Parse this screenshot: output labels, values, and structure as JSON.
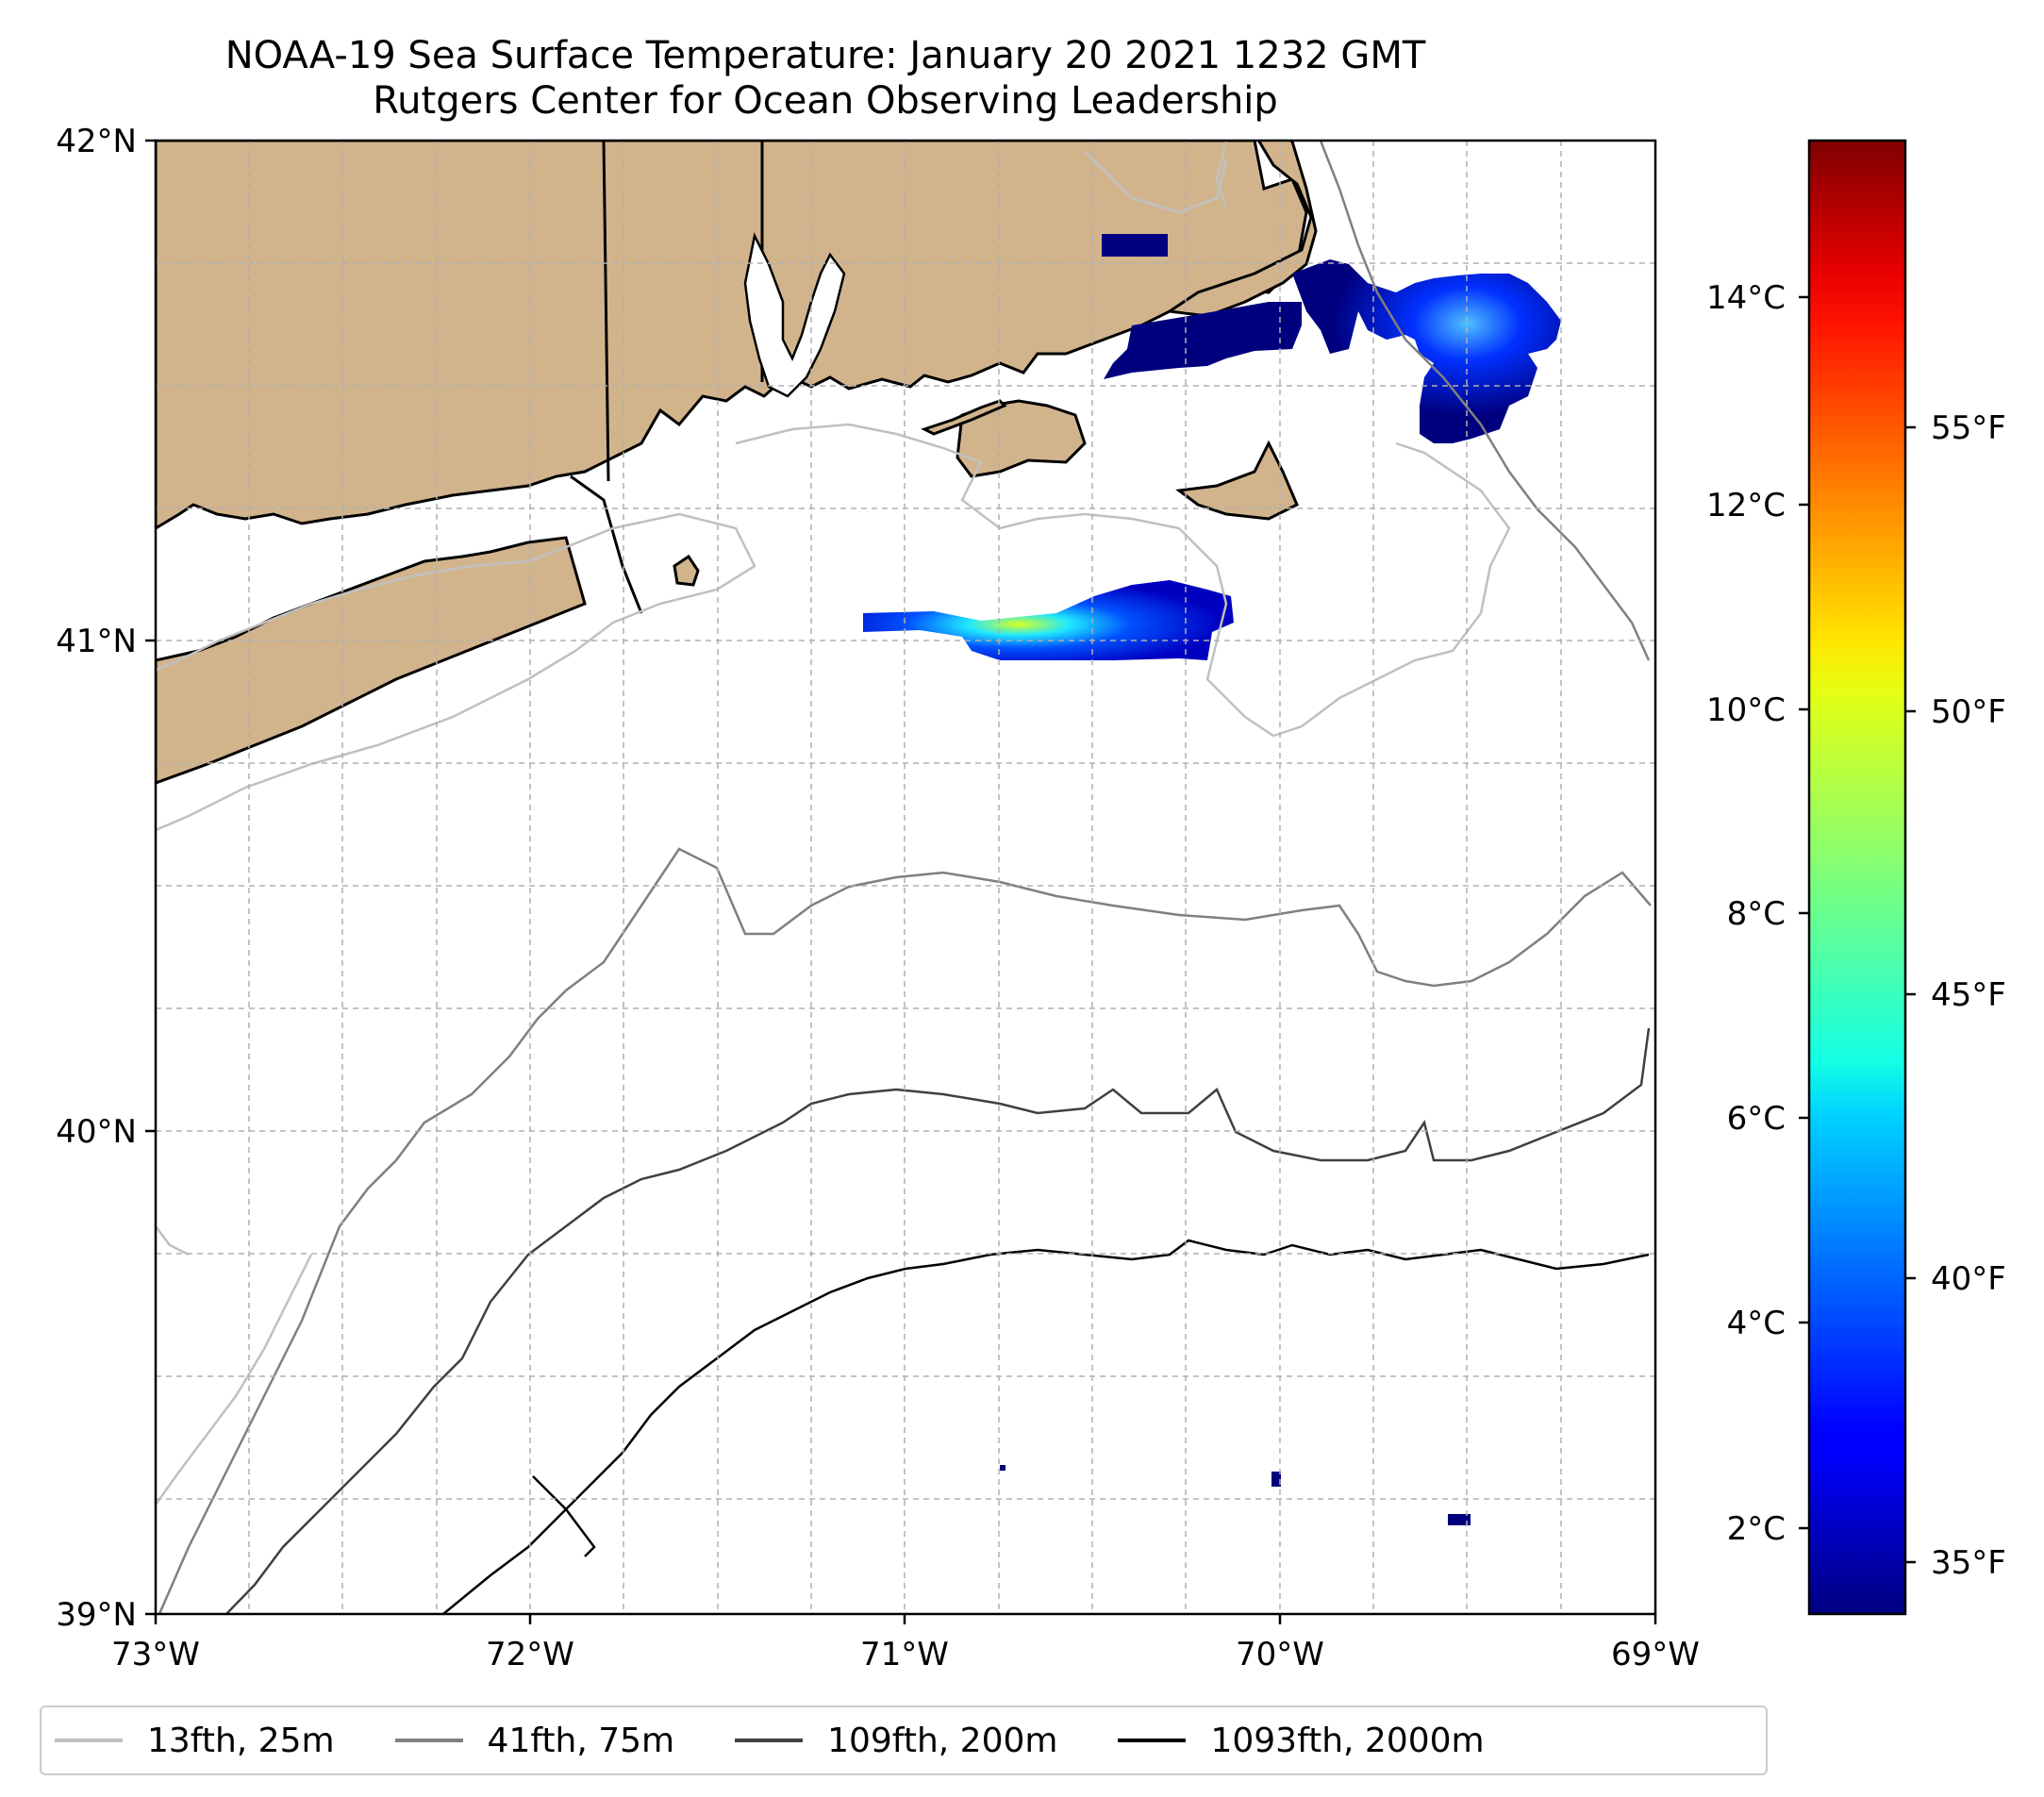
{
  "title": "NOAA-19 Sea Surface Temperature: January 20 2021 1232 GMT",
  "subtitle": "Rutgers Center for Ocean Observing Leadership",
  "axes": {
    "lat_labels": [
      "42°N",
      "41°N",
      "40°N",
      "39°N"
    ],
    "lon_labels": [
      "73°W",
      "72°W",
      "71°W",
      "70°W",
      "69°W"
    ],
    "lat_range": [
      39,
      42
    ],
    "lon_range": [
      -73,
      -69
    ]
  },
  "colorbar": {
    "celsius_labels": [
      "14°C",
      "12°C",
      "10°C",
      "8°C",
      "6°C",
      "4°C",
      "2°C"
    ],
    "fahrenheit_labels": [
      "55°F",
      "50°F",
      "45°F",
      "40°F",
      "35°F"
    ],
    "colormap": "jet"
  },
  "legend": [
    {
      "label": "13fth, 25m",
      "color": "#c0c0c0"
    },
    {
      "label": "41fth, 75m",
      "color": "#808080"
    },
    {
      "label": "109fth, 200m",
      "color": "#404040"
    },
    {
      "label": "1093fth, 2000m",
      "color": "#000000"
    }
  ],
  "colors": {
    "land": "#d2b48c",
    "sst_cold": "#00007f",
    "sst_mid": "#0066ff"
  }
}
